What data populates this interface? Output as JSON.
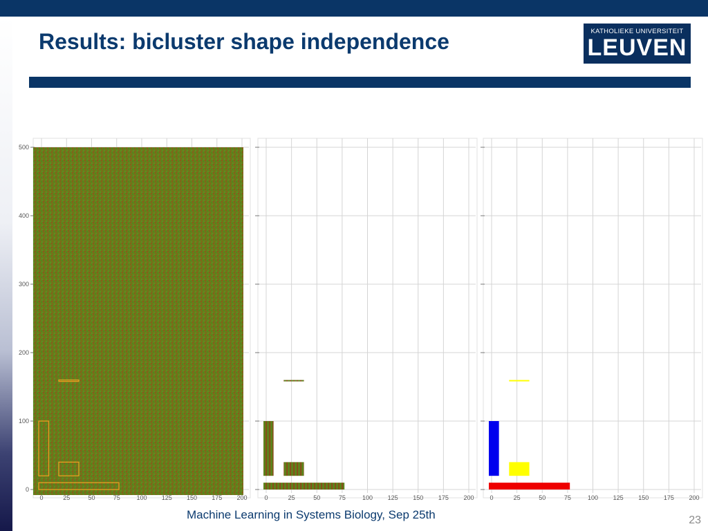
{
  "slide": {
    "title": "Results: bicluster shape independence",
    "footer": "Machine Learning in Systems Biology, Sep 25th",
    "page_number": "23"
  },
  "logo": {
    "line1": "KATHOLIEKE UNIVERSITEIT",
    "line2": "LEUVEN"
  },
  "figure": {
    "x_ticks": [
      "0",
      "25",
      "50",
      "75",
      "100",
      "125",
      "150",
      "175",
      "200"
    ],
    "y_ticks": [
      "0",
      "100",
      "200",
      "300",
      "400",
      "500"
    ],
    "x_range": [
      0,
      200
    ],
    "y_range": [
      0,
      500
    ],
    "biclusters": [
      {
        "columns": [
          0,
          10
        ],
        "rows": [
          20,
          100
        ],
        "color": "#0000ee"
      },
      {
        "columns": [
          20,
          40
        ],
        "rows": [
          20,
          40
        ],
        "color": "#ffff00"
      },
      {
        "columns": [
          0,
          80
        ],
        "rows": [
          0,
          10
        ],
        "color": "#ee0000"
      },
      {
        "columns": [
          20,
          40
        ],
        "rows": [
          159,
          160
        ],
        "color": "#ffff00"
      }
    ],
    "heatmap_colors": [
      "#8a6a1a",
      "#6e8a14",
      "#5a8a1a",
      "#7a5a1a"
    ]
  }
}
